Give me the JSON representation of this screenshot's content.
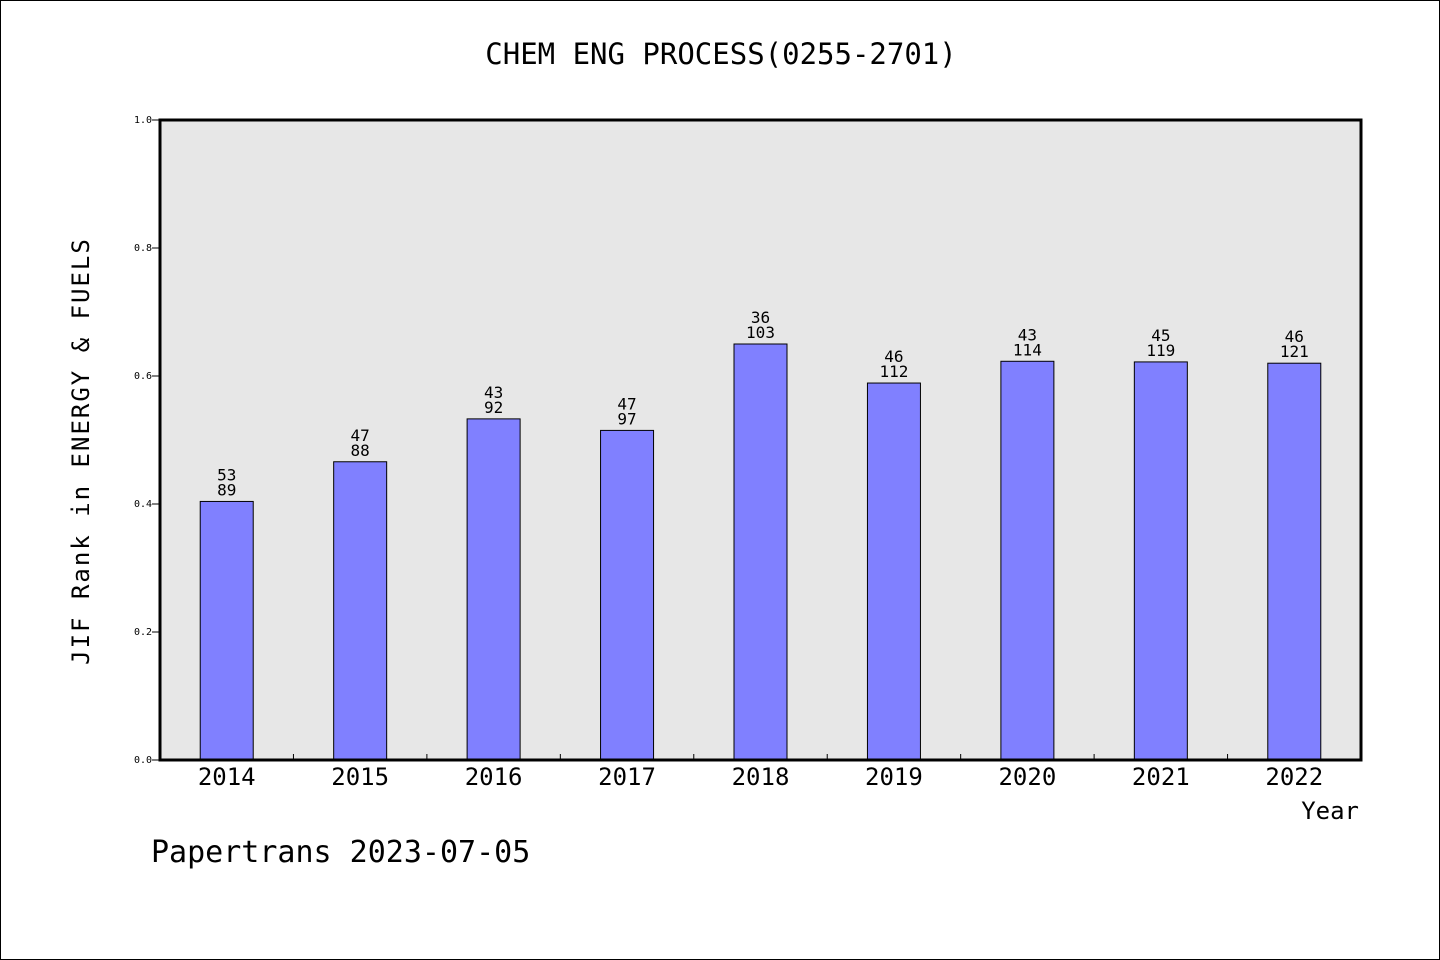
{
  "chart_data": {
    "type": "bar",
    "title": "CHEM ENG PROCESS(0255-2701)",
    "xlabel": "Year",
    "ylabel": "JIF Rank in ENERGY & FUELS",
    "ylim": [
      0,
      1.0
    ],
    "yticks": [
      "0.0",
      "0.2",
      "0.4",
      "0.6",
      "0.8",
      "1.0"
    ],
    "categories": [
      "2014",
      "2015",
      "2016",
      "2017",
      "2018",
      "2019",
      "2020",
      "2021",
      "2022"
    ],
    "values": [
      0.404,
      0.466,
      0.533,
      0.515,
      0.65,
      0.589,
      0.623,
      0.622,
      0.62
    ],
    "labels_top": [
      "53",
      "47",
      "43",
      "47",
      "36",
      "46",
      "43",
      "45",
      "46"
    ],
    "labels_bottom": [
      "89",
      "88",
      "92",
      "97",
      "103",
      "112",
      "114",
      "119",
      "121"
    ],
    "bar_color": "#8080ff",
    "plot_background": "#e7e7e7",
    "grid": false
  },
  "footer": "Papertrans 2023-07-05"
}
